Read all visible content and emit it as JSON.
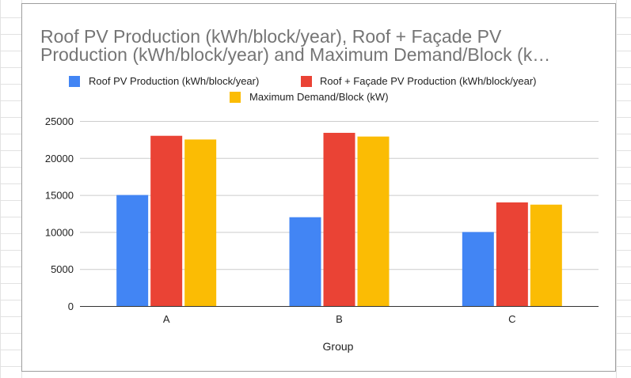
{
  "chart_data": {
    "type": "bar",
    "title_lines": [
      "Roof PV Production (kWh/block/year), Roof + Façade PV",
      "Production (kWh/block/year) and Maximum Demand/Block (k…"
    ],
    "xlabel": "Group",
    "ylabel": "",
    "categories": [
      "A",
      "B",
      "C"
    ],
    "ylim": [
      0,
      25000
    ],
    "yticks": [
      0,
      5000,
      10000,
      15000,
      20000,
      25000
    ],
    "grid": true,
    "legend_position": "top",
    "series": [
      {
        "name": "Roof PV Production (kWh/block/year)",
        "color": "#4285f4",
        "values": [
          15000,
          12000,
          10000
        ]
      },
      {
        "name": "Roof + Façade PV Production (kWh/block/year)",
        "color": "#ea4335",
        "values": [
          23000,
          23400,
          14000
        ]
      },
      {
        "name": "Maximum Demand/Block (kW)",
        "color": "#fbbc04",
        "values": [
          22500,
          22900,
          13700
        ]
      }
    ]
  }
}
